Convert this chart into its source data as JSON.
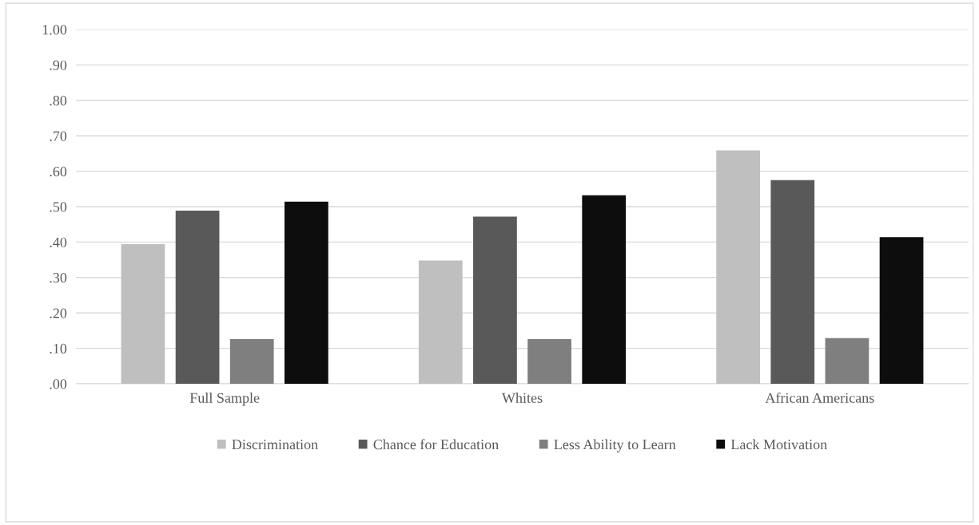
{
  "chart_data": {
    "type": "bar",
    "categories": [
      "Full Sample",
      "Whites",
      "African Americans"
    ],
    "series": [
      {
        "name": "Discrimination",
        "color": "#bfbfbf",
        "values": [
          0.394,
          0.348,
          0.659
        ]
      },
      {
        "name": "Chance for Education",
        "color": "#595959",
        "values": [
          0.489,
          0.472,
          0.575
        ]
      },
      {
        "name": "Less Ability to Learn",
        "color": "#7f7f7f",
        "values": [
          0.126,
          0.126,
          0.129
        ]
      },
      {
        "name": "Lack Motivation",
        "color": "#0d0d0d",
        "values": [
          0.514,
          0.532,
          0.414
        ]
      }
    ],
    "ylim": [
      0,
      1
    ],
    "yticks": [
      {
        "value": 0,
        "label": ".00"
      },
      {
        "value": 0.1,
        "label": ".10"
      },
      {
        "value": 0.2,
        "label": ".20"
      },
      {
        "value": 0.3,
        "label": ".30"
      },
      {
        "value": 0.4,
        "label": ".40"
      },
      {
        "value": 0.5,
        "label": ".50"
      },
      {
        "value": 0.6,
        "label": ".60"
      },
      {
        "value": 0.7,
        "label": ".70"
      },
      {
        "value": 0.8,
        "label": ".80"
      },
      {
        "value": 0.9,
        "label": ".90"
      },
      {
        "value": 1,
        "label": "1.00"
      }
    ],
    "grid": "y",
    "legend": "bottom"
  }
}
